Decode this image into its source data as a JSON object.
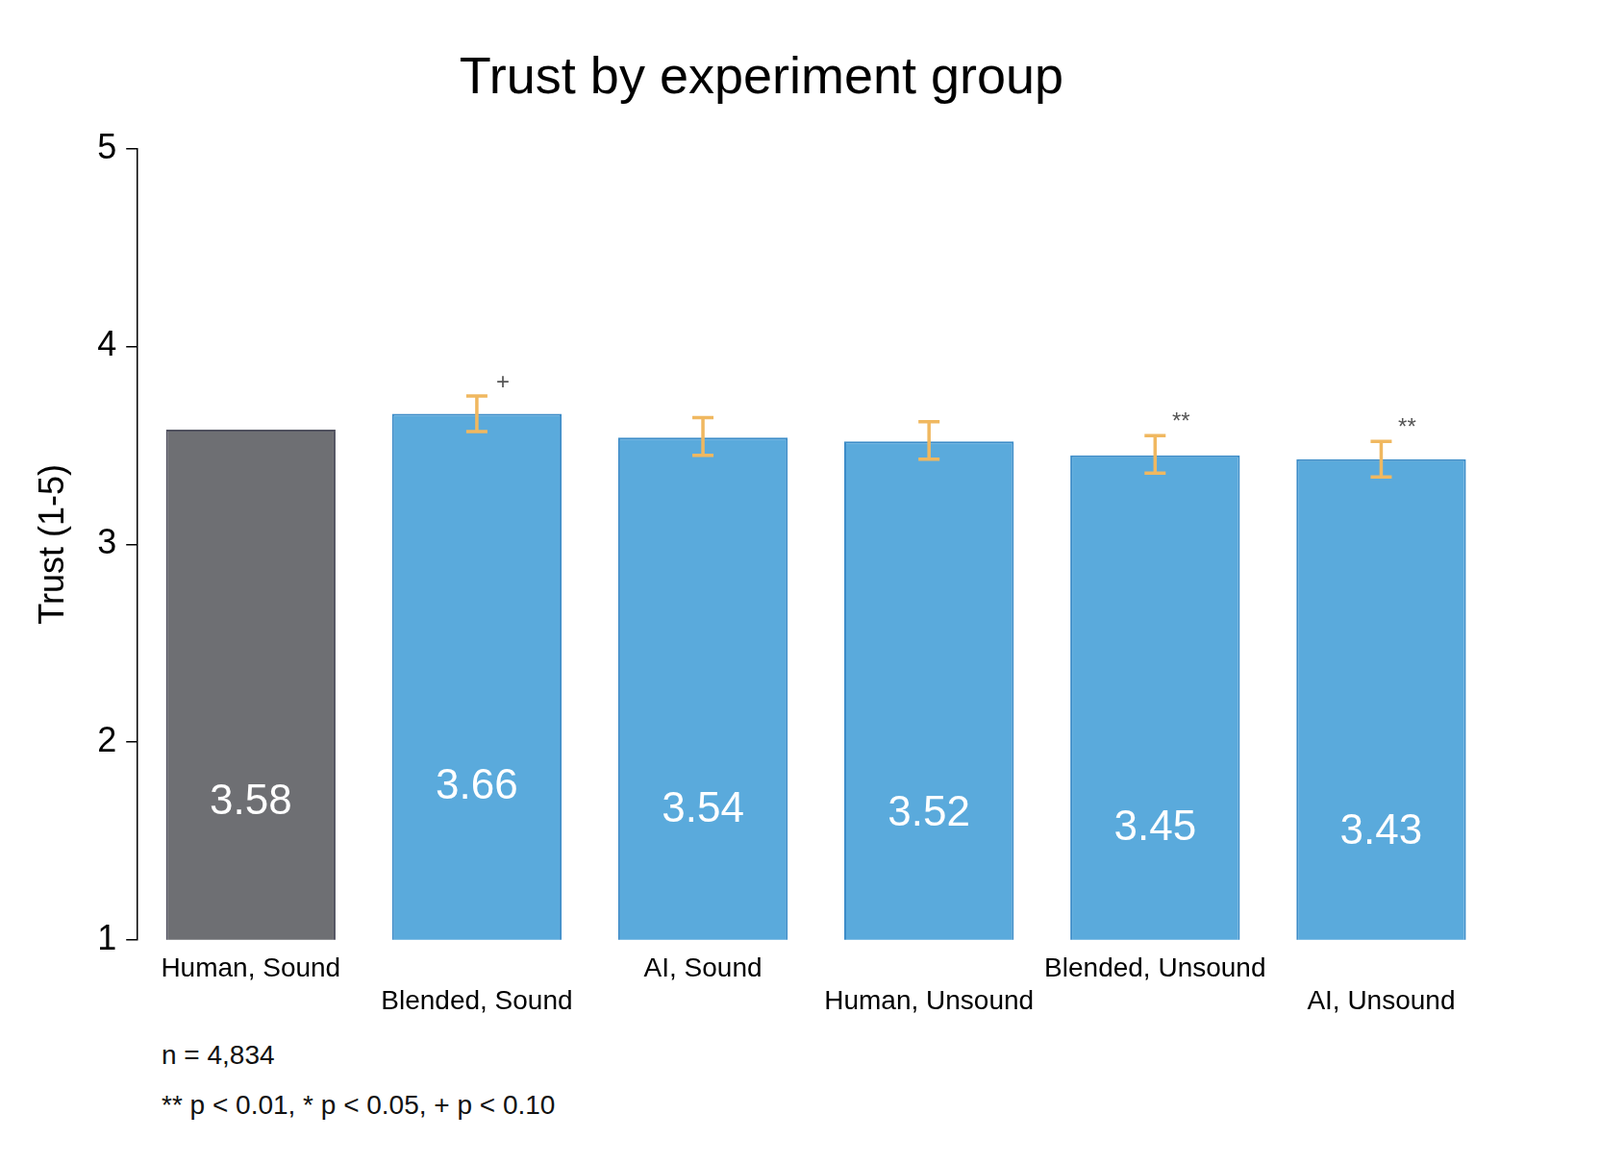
{
  "chart_data": {
    "type": "bar",
    "title": "Trust by experiment group",
    "y_label": "Trust (1-5)",
    "categories": [
      "Human, Sound",
      "Blended, Sound",
      "AI, Sound",
      "Human, Unsound",
      "Blended, Unsound",
      "AI, Unsound"
    ],
    "values": [
      3.58,
      3.66,
      3.54,
      3.52,
      3.45,
      3.43
    ],
    "colors": [
      "#6e6f73",
      "#5aaadc",
      "#5aaadc",
      "#5aaadc",
      "#5aaadc",
      "#5aaadc"
    ],
    "error_low": [
      null,
      3.57,
      3.45,
      3.43,
      3.36,
      3.34
    ],
    "error_high": [
      null,
      3.75,
      3.64,
      3.62,
      3.55,
      3.52
    ],
    "significance": [
      null,
      "+",
      null,
      null,
      "**",
      "**"
    ],
    "ylim": [
      1,
      5
    ],
    "yticks": [
      1,
      2,
      3,
      4,
      5
    ],
    "grid": false,
    "data_labels": true,
    "annotations": [
      "n = 4,834",
      "** p < 0.01, * p < 0.05, + p < 0.10"
    ]
  }
}
